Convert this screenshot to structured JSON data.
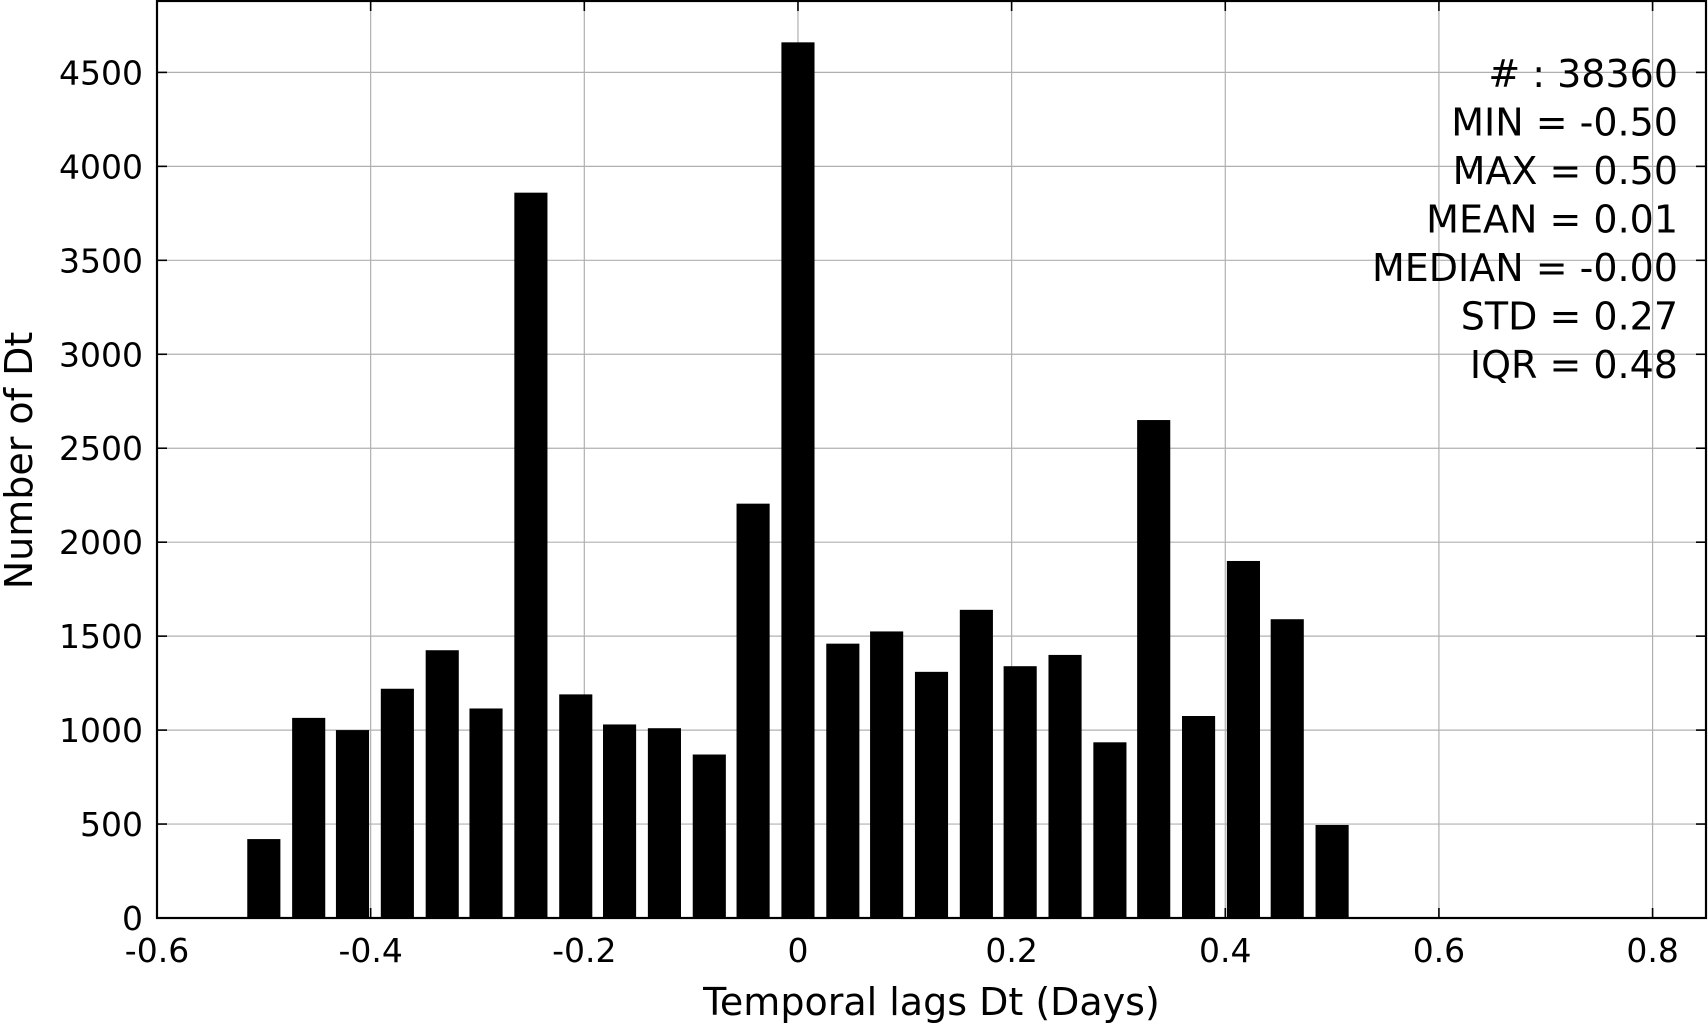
{
  "chart_data": {
    "type": "bar",
    "title": "",
    "xlabel": "Temporal lags Dt (Days)",
    "ylabel": "Number of Dt",
    "xlim": [
      -0.6,
      0.85
    ],
    "ylim": [
      0,
      4880
    ],
    "grid": true,
    "bar_color": "#000000",
    "xticks": [
      -0.6,
      -0.4,
      -0.2,
      0,
      0.2,
      0.4,
      0.6,
      0.8
    ],
    "xtick_labels": [
      "-0.6",
      "-0.4",
      "-0.2",
      "0",
      "0.2",
      "0.4",
      "0.6",
      "0.8"
    ],
    "yticks": [
      0,
      500,
      1000,
      1500,
      2000,
      2500,
      3000,
      3500,
      4000,
      4500
    ],
    "ytick_labels": [
      "0",
      "500",
      "1000",
      "1500",
      "2000",
      "2500",
      "3000",
      "3500",
      "4000",
      "4500"
    ],
    "bar_width": 0.031,
    "x": [
      -0.5,
      -0.458,
      -0.417,
      -0.375,
      -0.333,
      -0.292,
      -0.25,
      -0.208,
      -0.167,
      -0.125,
      -0.083,
      -0.042,
      0.0,
      0.042,
      0.083,
      0.125,
      0.167,
      0.208,
      0.25,
      0.292,
      0.333,
      0.375,
      0.417,
      0.458,
      0.5
    ],
    "values": [
      420,
      1065,
      1000,
      1220,
      1425,
      1115,
      3860,
      1190,
      1030,
      1010,
      870,
      2205,
      4660,
      1460,
      1525,
      1310,
      1640,
      1340,
      1400,
      935,
      2650,
      1075,
      1900,
      1590,
      495
    ],
    "stats": [
      "# : 38360",
      "MIN = -0.50",
      "MAX =  0.50",
      "MEAN = 0.01",
      "MEDIAN = -0.00",
      "STD = 0.27",
      "IQR = 0.48"
    ]
  }
}
